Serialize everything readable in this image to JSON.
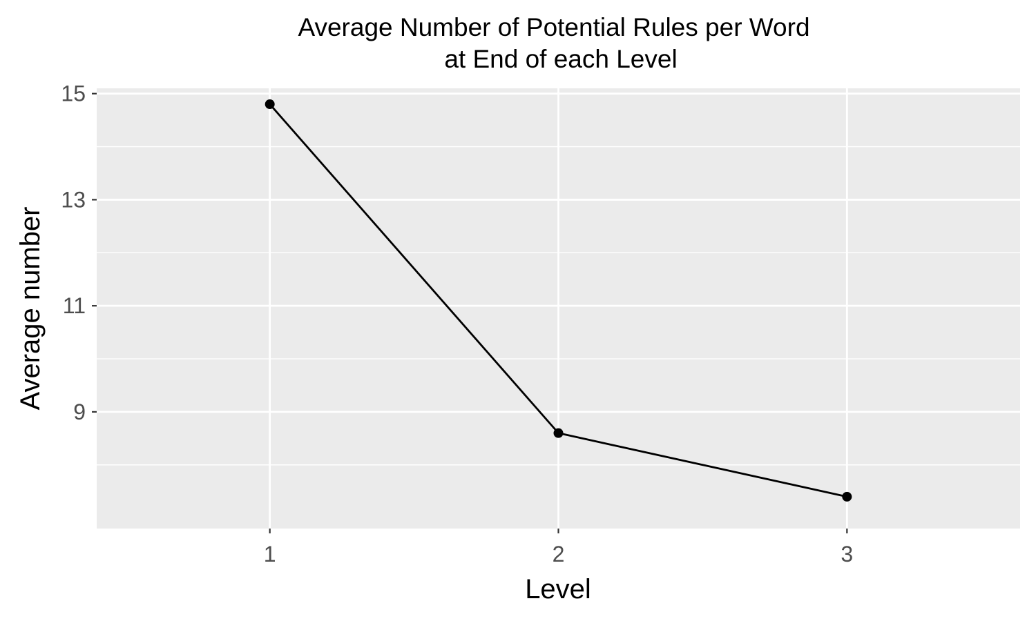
{
  "chart_data": {
    "type": "line",
    "title": [
      "Average Number of Potential Rules per Word",
      "at End of each Level"
    ],
    "xlabel": "Level",
    "ylabel": "Average number",
    "categories": [
      "1",
      "2",
      "3"
    ],
    "x": [
      1,
      2,
      3
    ],
    "series": [
      {
        "values": [
          14.8,
          8.6,
          7.4
        ]
      }
    ],
    "xlim": [
      0.4,
      3.6
    ],
    "ylim": [
      6.8,
      15.1
    ],
    "y_ticks": [
      9,
      11,
      13,
      15
    ],
    "y_tick_labels": [
      "9",
      "11",
      "13",
      "15"
    ],
    "grid": true,
    "legend": "none",
    "colors": {
      "panel_background": "#ebebeb",
      "grid": "#ffffff",
      "line": "#000000",
      "point": "#000000",
      "tick_text": "#4d4d4d",
      "tick_mark": "#333333"
    }
  }
}
